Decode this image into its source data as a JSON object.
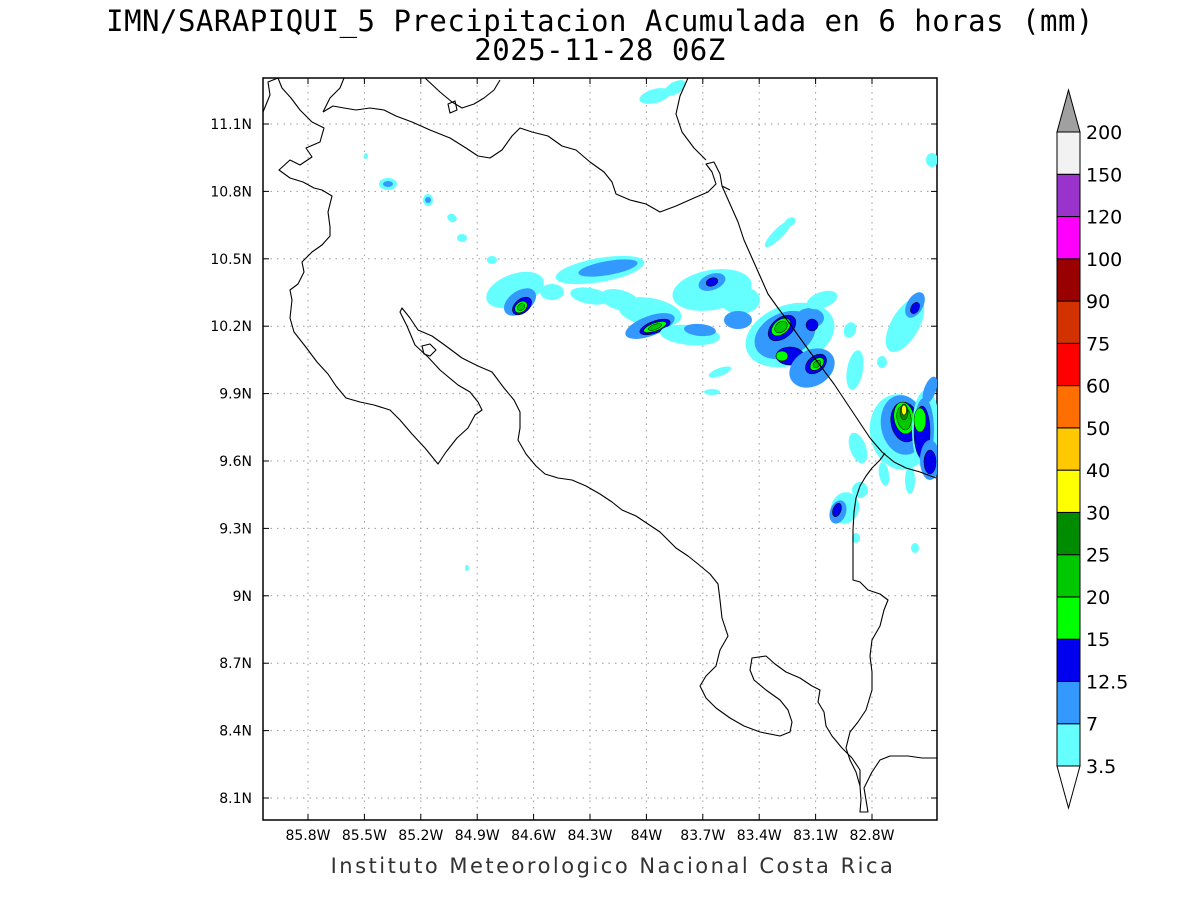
{
  "title": "IMN/SARAPIQUI_5 Precipitacion Acumulada en 6 horas (mm)",
  "subtitle": "2025-11-28 06Z",
  "credit": "Instituto Meteorologico Nacional Costa Rica",
  "chart_data": {
    "type": "heatmap",
    "map_region": "Costa Rica",
    "variable": "Precipitacion Acumulada en 6 horas",
    "units": "mm",
    "valid_time": "2025-11-28 06Z",
    "lon_ticks": [
      "85.8W",
      "85.5W",
      "85.2W",
      "84.9W",
      "84.6W",
      "84.3W",
      "84W",
      "83.7W",
      "83.4W",
      "83.1W",
      "82.8W"
    ],
    "lat_ticks": [
      "11.1N",
      "10.8N",
      "10.5N",
      "10.2N",
      "9.9N",
      "9.6N",
      "9.3N",
      "9N",
      "8.7N",
      "8.4N",
      "8.1N"
    ],
    "grid": true,
    "legend_position": "right",
    "colorbar": {
      "levels": [
        "3.5",
        "7",
        "12.5",
        "15",
        "20",
        "25",
        "30",
        "40",
        "50",
        "60",
        "75",
        "90",
        "100",
        "120",
        "150",
        "200"
      ],
      "colors": [
        "#66ffff",
        "#3399ff",
        "#0000ee",
        "#00ff00",
        "#00c800",
        "#008c00",
        "#ffff00",
        "#ffc800",
        "#ff6e00",
        "#ff0000",
        "#d23200",
        "#990000",
        "#ff00ff",
        "#9933cc",
        "#f2f2f2",
        "#a0a0a0"
      ]
    },
    "rain_features": [
      {
        "lon": -84.65,
        "lat": 10.29,
        "max_class": "20"
      },
      {
        "lon": -83.95,
        "lat": 10.2,
        "max_class": "20"
      },
      {
        "lon": -83.72,
        "lat": 10.38,
        "max_class": "12.5"
      },
      {
        "lon": -83.28,
        "lat": 10.19,
        "max_class": "20"
      },
      {
        "lon": -83.1,
        "lat": 10.05,
        "max_class": "20"
      },
      {
        "lon": -83.3,
        "lat": 10.08,
        "max_class": "20"
      },
      {
        "lon": -82.73,
        "lat": 9.8,
        "max_class": "40"
      },
      {
        "lon": -82.62,
        "lat": 9.78,
        "max_class": "20"
      },
      {
        "lon": -82.55,
        "lat": 9.57,
        "max_class": "12.5"
      },
      {
        "lon": -82.58,
        "lat": 10.25,
        "max_class": "12.5"
      },
      {
        "lon": -83.11,
        "lat": 9.38,
        "max_class": "12.5"
      },
      {
        "lon": -85.32,
        "lat": 10.84,
        "max_class": "12.5"
      }
    ]
  }
}
